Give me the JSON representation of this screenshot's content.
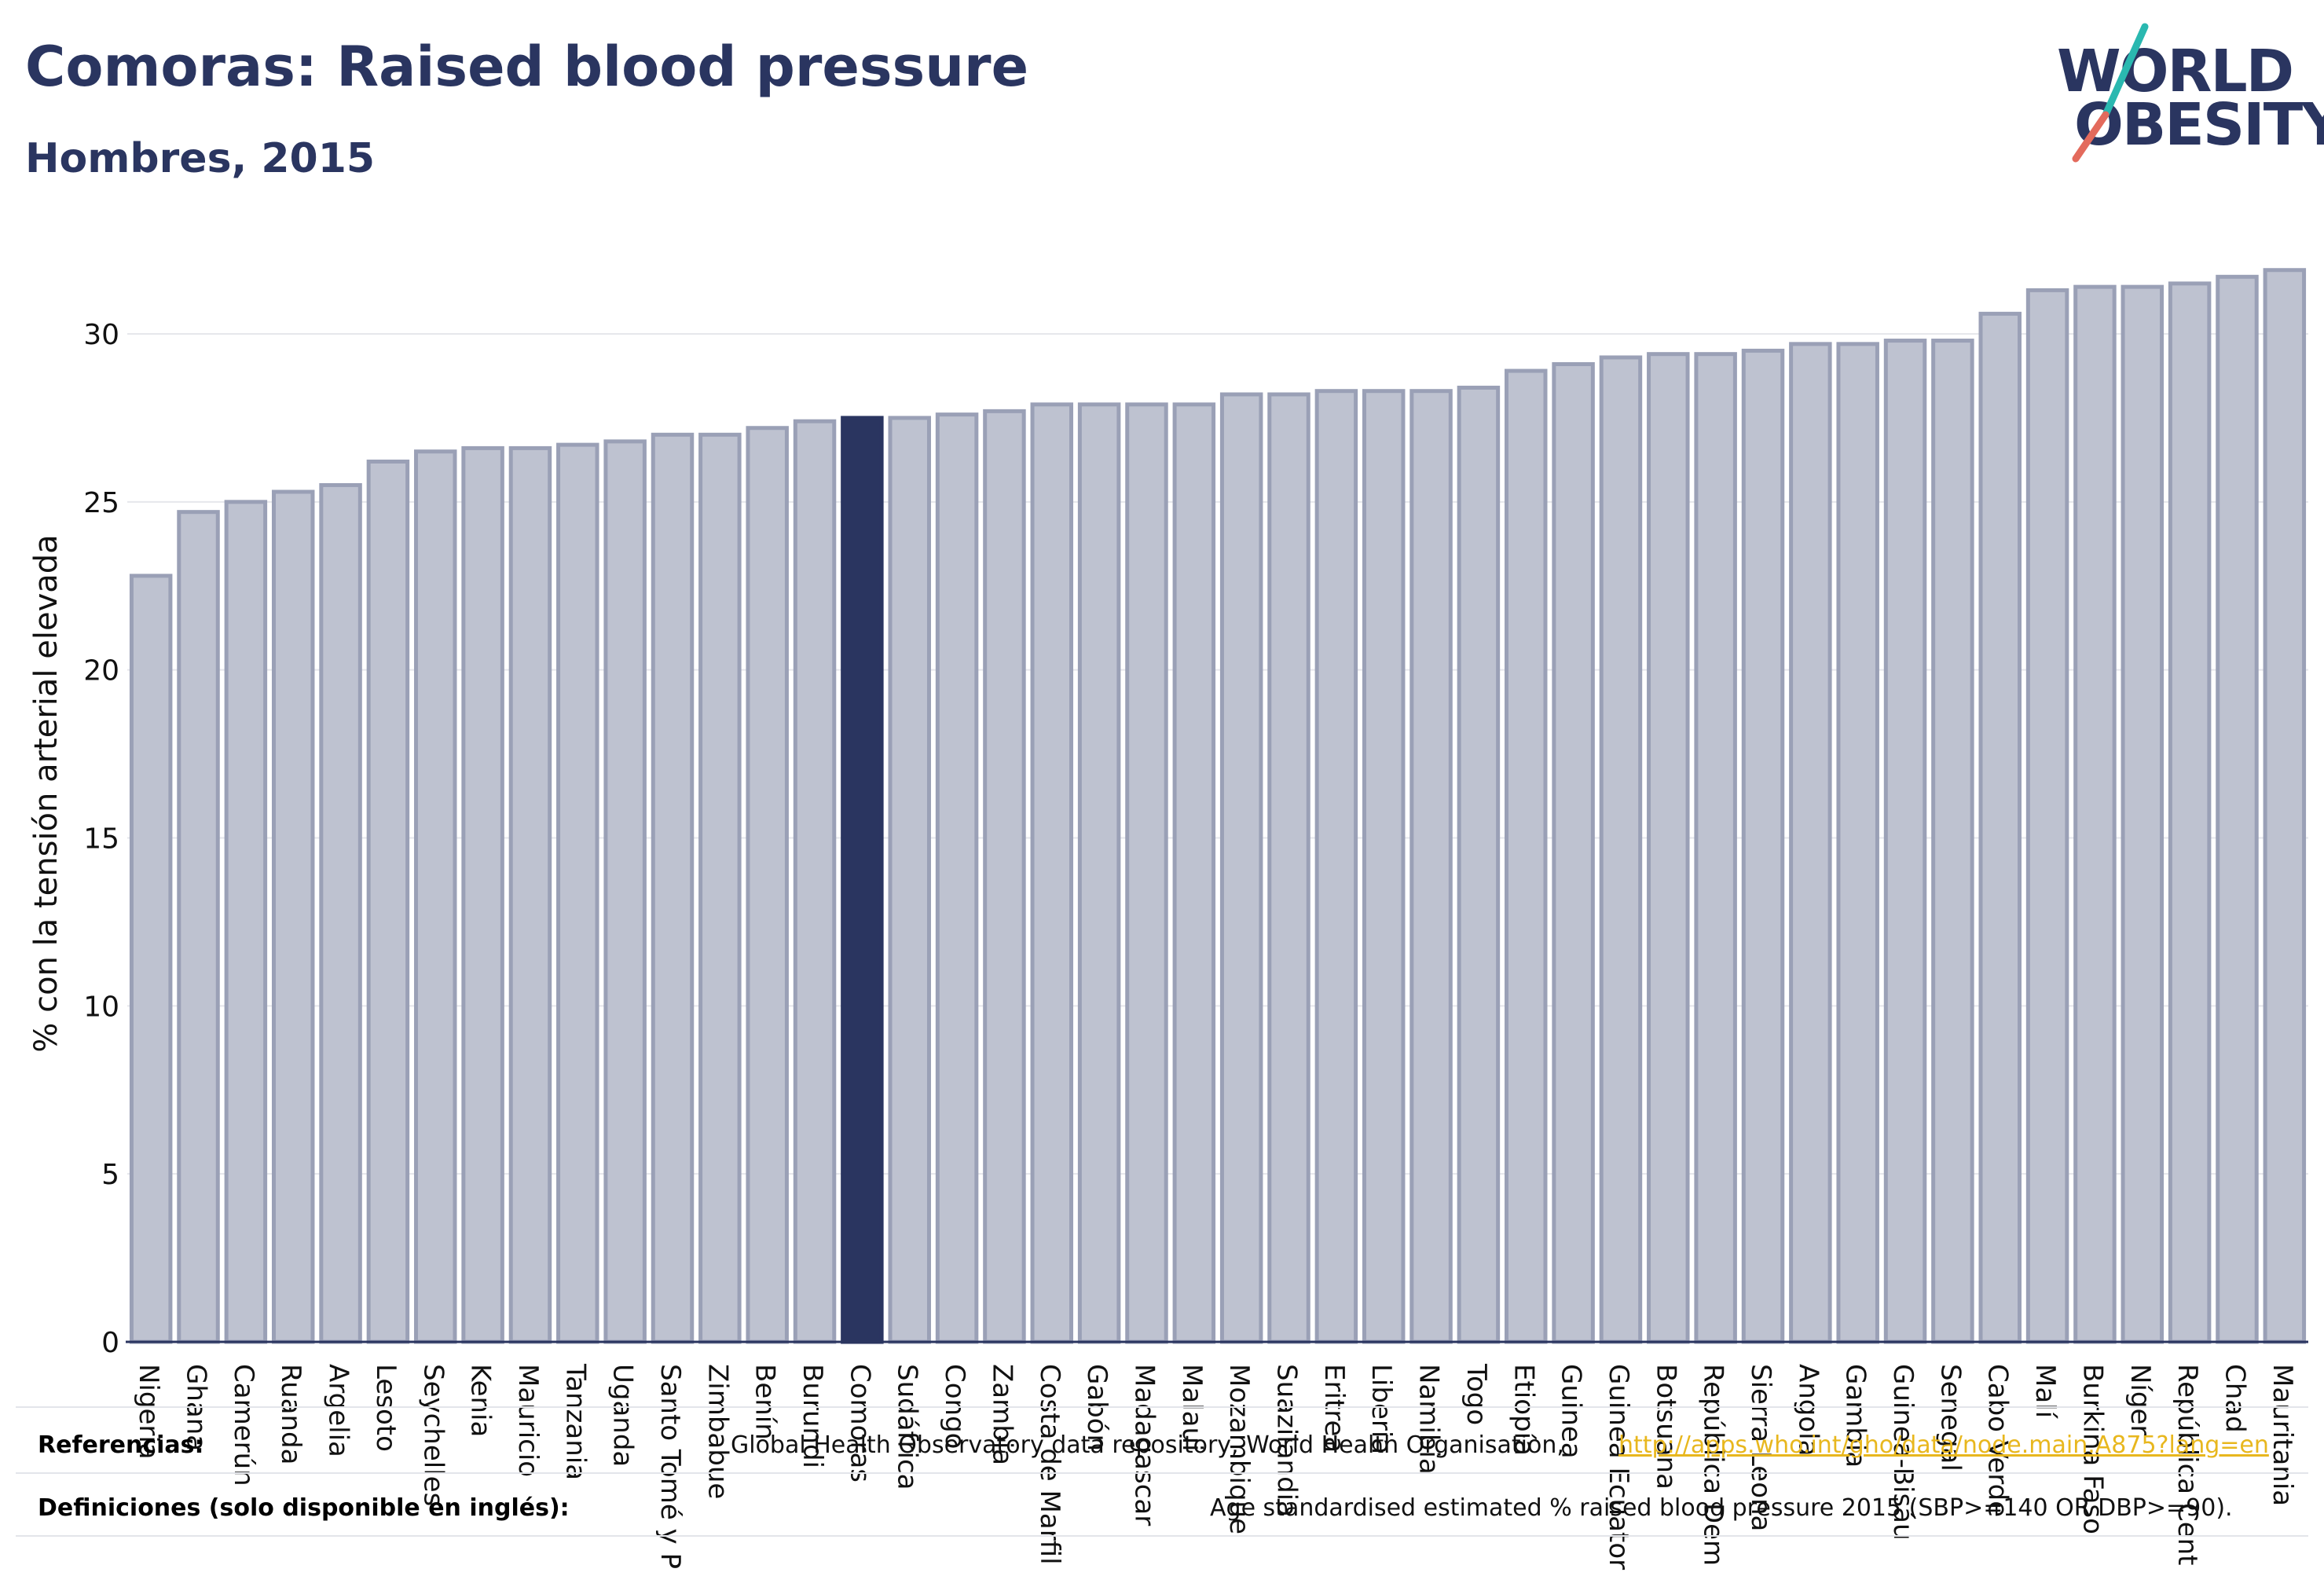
{
  "header": {
    "title": "Comoras: Raised blood pressure",
    "subtitle": "Hombres, 2015"
  },
  "logo": {
    "line1": "WORLD",
    "line2": "OBESITY",
    "accent_colors": [
      "#2ab8b0",
      "#e36a5c"
    ]
  },
  "colors": {
    "bar_default": "#bec2d0",
    "bar_border": "#9aa0b6",
    "bar_highlight": "#2a3560",
    "axis_text": "#111111",
    "grid": "#e6e7ec",
    "link": "#e8b71e"
  },
  "chart_data": {
    "type": "bar",
    "ylabel": "% con la tensión arterial elevada",
    "ylim": [
      0,
      32
    ],
    "yticks": [
      0,
      5,
      10,
      15,
      20,
      25,
      30
    ],
    "grid": true,
    "highlight": "Comoras",
    "categories": [
      "Nigeria",
      "Ghana",
      "Camerún",
      "Ruanda",
      "Argelia",
      "Lesoto",
      "Seychelles",
      "Kenia",
      "Mauricio",
      "Tanzania",
      "Uganda",
      "Santo Tomé y P",
      "Zimbabue",
      "Benín",
      "Burundi",
      "Comoras",
      "Sudáfrica",
      "Congo",
      "Zambia",
      "Costa de Marfil",
      "Gabón",
      "Madagascar",
      "Malaui",
      "Mozambique",
      "Suazilandia",
      "Eritrea",
      "Liberia",
      "Namibia",
      "Togo",
      "Etiopía",
      "Guinea",
      "Guinea Ecuator",
      "Botsuana",
      "República Dem",
      "Sierra Leona",
      "Angola",
      "Gambia",
      "Guinea-Bisáu",
      "Senegal",
      "Cabo Verde",
      "Malí",
      "Burkina Faso",
      "Níger",
      "República Cent",
      "Chad",
      "Mauritania"
    ],
    "values": [
      22.8,
      24.7,
      25.0,
      25.3,
      25.5,
      26.2,
      26.5,
      26.6,
      26.6,
      26.7,
      26.8,
      27.0,
      27.0,
      27.2,
      27.4,
      27.5,
      27.5,
      27.6,
      27.7,
      27.9,
      27.9,
      27.9,
      27.9,
      28.2,
      28.2,
      28.3,
      28.3,
      28.3,
      28.4,
      28.9,
      29.1,
      29.3,
      29.4,
      29.4,
      29.5,
      29.7,
      29.7,
      29.8,
      29.8,
      30.6,
      31.3,
      31.4,
      31.4,
      31.5,
      31.7,
      31.9
    ]
  },
  "footer": {
    "ref_label": "Referencias:",
    "ref_text": "Global Health Observatory data repository, World Health Organisation,",
    "ref_link": "http://apps.who.int/gho/data/node.main.A875?lang=en",
    "def_label": "Definiciones (solo disponible en inglés):",
    "def_text": "Age standardised estimated % raised blood pressure 2015 (SBP>=140 OR DBP>=90)."
  }
}
